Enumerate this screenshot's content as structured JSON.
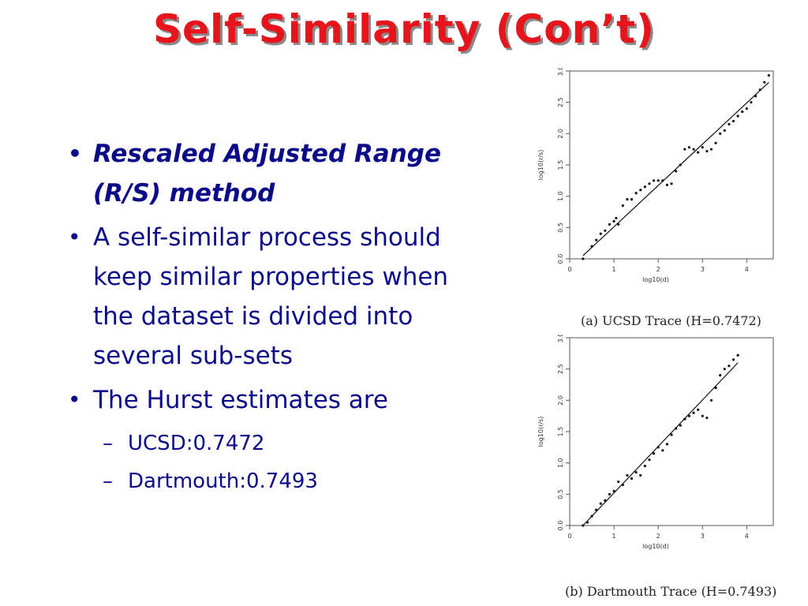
{
  "slide": {
    "title": "Self-Similarity (Con’t)",
    "bullets": [
      {
        "text": "Rescaled Adjusted Range (R/S) method",
        "emphasis": true
      },
      {
        "text": "A self-similar process should keep similar properties when the dataset is divided into several sub-sets",
        "emphasis": false
      },
      {
        "text": "The Hurst estimates are",
        "emphasis": false
      }
    ],
    "sub_bullets": [
      "UCSD:0.7472",
      "Dartmouth:0.7493"
    ],
    "colors": {
      "title": "#e8141b",
      "title_shadow": "#8a8a8a",
      "text": "#0b0b8a"
    }
  },
  "chart_data": [
    {
      "type": "scatter",
      "caption": "(a) UCSD Trace (H=0.7472)",
      "xlabel": "log10(d)",
      "ylabel": "log10(r/s)",
      "xlim": [
        0,
        4.6
      ],
      "ylim": [
        0,
        3.0
      ],
      "xticks": [
        "0",
        "1",
        "2",
        "3",
        "4"
      ],
      "yticks": [
        "0.0",
        "0.5",
        "1.0",
        "1.5",
        "2.0",
        "2.5",
        "3.0"
      ],
      "fit_line": {
        "x": [
          0.3,
          4.5
        ],
        "y": [
          0.05,
          2.82
        ]
      },
      "points": {
        "x": [
          0.3,
          0.5,
          0.6,
          0.7,
          0.8,
          0.9,
          1.0,
          1.05,
          1.1,
          1.2,
          1.3,
          1.4,
          1.5,
          1.6,
          1.7,
          1.8,
          1.9,
          2.0,
          2.1,
          2.2,
          2.3,
          2.4,
          2.5,
          2.6,
          2.7,
          2.8,
          2.9,
          3.0,
          3.1,
          3.2,
          3.3,
          3.4,
          3.5,
          3.6,
          3.7,
          3.8,
          3.9,
          4.0,
          4.1,
          4.2,
          4.3,
          4.4,
          4.5
        ],
        "y": [
          0.0,
          0.2,
          0.3,
          0.4,
          0.45,
          0.55,
          0.6,
          0.65,
          0.55,
          0.85,
          0.95,
          0.95,
          1.05,
          1.1,
          1.15,
          1.2,
          1.25,
          1.25,
          1.25,
          1.18,
          1.2,
          1.4,
          1.5,
          1.75,
          1.78,
          1.75,
          1.7,
          1.78,
          1.72,
          1.75,
          1.85,
          2.0,
          2.05,
          2.15,
          2.2,
          2.28,
          2.35,
          2.4,
          2.5,
          2.6,
          2.7,
          2.82,
          2.93
        ]
      }
    },
    {
      "type": "scatter",
      "caption": "(b) Dartmouth Trace (H=0.7493)",
      "xlabel": "log10(d)",
      "ylabel": "log10(r/s)",
      "xlim": [
        0,
        4.6
      ],
      "ylim": [
        0,
        3.0
      ],
      "xticks": [
        "0",
        "1",
        "2",
        "3",
        "4"
      ],
      "yticks": [
        "0.0",
        "0.5",
        "1.0",
        "1.5",
        "2.0",
        "2.5",
        "3.0"
      ],
      "fit_line": {
        "x": [
          0.3,
          3.8
        ],
        "y": [
          0.0,
          2.6
        ]
      },
      "points": {
        "x": [
          0.3,
          0.4,
          0.5,
          0.6,
          0.7,
          0.8,
          0.9,
          1.0,
          1.1,
          1.2,
          1.3,
          1.4,
          1.5,
          1.6,
          1.7,
          1.8,
          1.9,
          2.0,
          2.1,
          2.2,
          2.3,
          2.4,
          2.5,
          2.6,
          2.7,
          2.8,
          2.9,
          3.0,
          3.1,
          3.2,
          3.3,
          3.4,
          3.5,
          3.6,
          3.7,
          3.8
        ],
        "y": [
          0.0,
          0.05,
          0.15,
          0.25,
          0.35,
          0.4,
          0.5,
          0.55,
          0.7,
          0.65,
          0.8,
          0.75,
          0.85,
          0.8,
          0.95,
          1.05,
          1.15,
          1.25,
          1.2,
          1.3,
          1.45,
          1.55,
          1.6,
          1.7,
          1.75,
          1.8,
          1.85,
          1.75,
          1.72,
          2.0,
          2.2,
          2.4,
          2.5,
          2.55,
          2.65,
          2.72
        ]
      }
    }
  ]
}
